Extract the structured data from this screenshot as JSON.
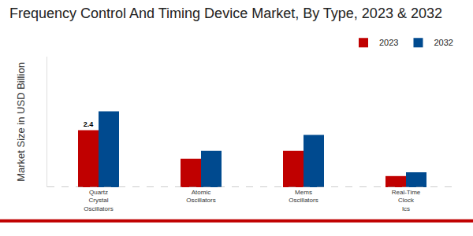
{
  "chart_data": {
    "type": "bar",
    "title": "Frequency Control And Timing Device Market, By Type, 2023 & 2032",
    "y_label": "Market Size in USD Billion",
    "categories": [
      "Quartz Crystal Oscillators",
      "Atomic Oscillators",
      "Mems Oscillators",
      "Real-Time Clock Ics"
    ],
    "series": [
      {
        "name": "2023",
        "color": "#c00000",
        "values": [
          2.4,
          1.2,
          1.53,
          0.47
        ],
        "value_labels": [
          "2.4",
          null,
          null,
          null
        ]
      },
      {
        "name": "2032",
        "color": "#004a8f",
        "values": [
          3.2,
          1.53,
          2.2,
          0.63
        ]
      }
    ],
    "ylim": [
      0,
      5.5
    ],
    "yticks": [],
    "grid": false,
    "legend": "top right",
    "data_labels": true,
    "tick_labels": "x"
  }
}
